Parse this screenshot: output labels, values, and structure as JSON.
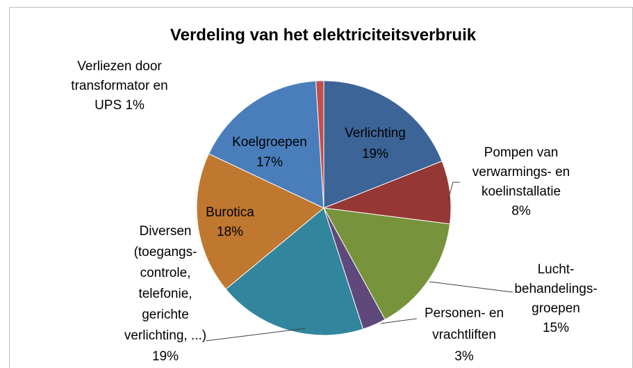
{
  "chart_data": {
    "type": "pie",
    "title": "Verdeling van het elektriciteitsverbruik",
    "categories": [
      [
        "Verlichting"
      ],
      [
        "Pompen van",
        "verwarmings- en",
        "koelinstallatie"
      ],
      [
        "Lucht-",
        "behandelings-",
        "groepen"
      ],
      [
        "Personen- en",
        "vrachtliften"
      ],
      [
        "Diversen",
        "(toegangs-",
        "controle,",
        "telefonie,",
        "gerichte",
        "verlichting, ...)"
      ],
      [
        "Burotica"
      ],
      [
        "Koelgroepen"
      ],
      [
        "Verliezen door",
        "transformator en",
        "UPS"
      ]
    ],
    "values": [
      19,
      8,
      15,
      3,
      19,
      18,
      17,
      1
    ],
    "value_labels": [
      "19%",
      "8%",
      "15%",
      "3%",
      "19%",
      "18%",
      "17%",
      "1%"
    ],
    "colors": [
      "#3c6496",
      "#953735",
      "#77933c",
      "#5f497a",
      "#31859c",
      "#c0772f",
      "#4a7ebb",
      "#c0504d"
    ]
  }
}
